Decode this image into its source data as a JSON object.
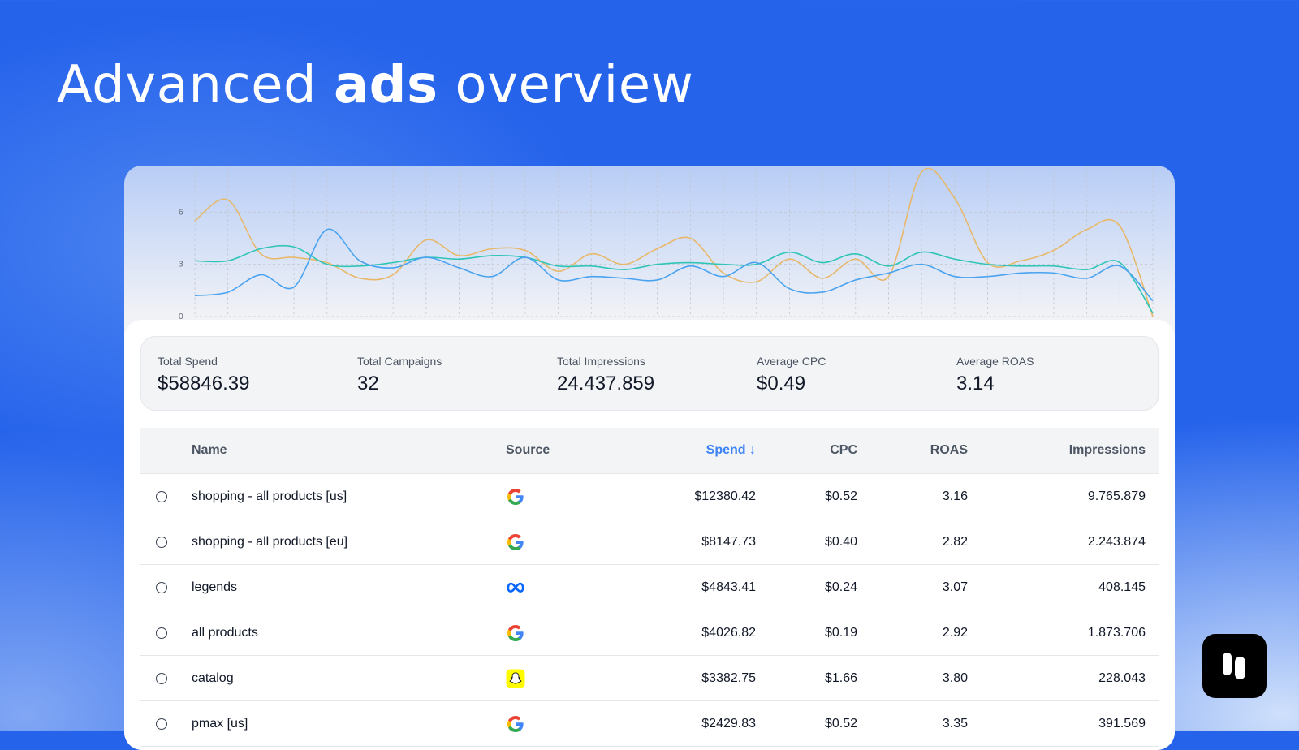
{
  "headline": {
    "pre": "Advanced ",
    "bold": "ads",
    "post": " overview"
  },
  "chart_data": {
    "type": "line",
    "y_ticks": [
      "0",
      "3",
      "6"
    ],
    "ylim": [
      0,
      8.3
    ],
    "grid": true,
    "x_count": 30,
    "series": [
      {
        "color": "#e8b86a",
        "values": [
          5.5,
          6.7,
          3.6,
          3.4,
          3.1,
          2.2,
          2.4,
          4.4,
          3.5,
          3.9,
          3.8,
          2.6,
          3.6,
          3.0,
          3.9,
          4.5,
          2.5,
          2.0,
          3.3,
          2.2,
          3.3,
          2.3,
          8.3,
          6.8,
          3.1,
          3.2,
          3.8,
          5.0,
          5.2,
          0.0
        ]
      },
      {
        "color": "#2ec4b6",
        "values": [
          3.2,
          3.2,
          3.9,
          4.0,
          3.0,
          2.9,
          3.1,
          3.4,
          3.3,
          3.5,
          3.4,
          2.9,
          2.9,
          2.7,
          3.0,
          3.1,
          3.0,
          3.0,
          3.7,
          3.1,
          3.6,
          2.9,
          3.7,
          3.3,
          3.0,
          2.9,
          2.9,
          2.7,
          3.1,
          0.2
        ]
      },
      {
        "color": "#4aa3f0",
        "values": [
          1.2,
          1.4,
          2.4,
          1.7,
          5.0,
          3.2,
          2.8,
          3.4,
          2.8,
          2.3,
          3.4,
          2.1,
          2.3,
          2.2,
          2.1,
          2.9,
          2.3,
          3.1,
          1.6,
          1.4,
          2.1,
          2.5,
          3.0,
          2.3,
          2.3,
          2.5,
          2.5,
          2.2,
          2.9,
          0.9
        ]
      }
    ]
  },
  "summary": [
    {
      "label": "Total Spend",
      "value": "$58846.39"
    },
    {
      "label": "Total Campaigns",
      "value": "32"
    },
    {
      "label": "Total Impressions",
      "value": "24.437.859"
    },
    {
      "label": "Average CPC",
      "value": "$0.49"
    },
    {
      "label": "Average ROAS",
      "value": "3.14"
    }
  ],
  "table": {
    "headers": {
      "name": "Name",
      "source": "Source",
      "spend": "Spend ↓",
      "cpc": "CPC",
      "roas": "ROAS",
      "impressions": "Impressions"
    },
    "rows": [
      {
        "name": "shopping - all products [us]",
        "source": "google-icon",
        "spend": "$12380.42",
        "cpc": "$0.52",
        "roas": "3.16",
        "impressions": "9.765.879"
      },
      {
        "name": "shopping - all products [eu]",
        "source": "google-icon",
        "spend": "$8147.73",
        "cpc": "$0.40",
        "roas": "2.82",
        "impressions": "2.243.874"
      },
      {
        "name": "legends",
        "source": "meta-icon",
        "spend": "$4843.41",
        "cpc": "$0.24",
        "roas": "3.07",
        "impressions": "408.145"
      },
      {
        "name": "all products",
        "source": "google-icon",
        "spend": "$4026.82",
        "cpc": "$0.19",
        "roas": "2.92",
        "impressions": "1.873.706"
      },
      {
        "name": "catalog",
        "source": "snapchat-icon",
        "spend": "$3382.75",
        "cpc": "$1.66",
        "roas": "3.80",
        "impressions": "228.043"
      },
      {
        "name": "pmax [us]",
        "source": "google-icon",
        "spend": "$2429.83",
        "cpc": "$0.52",
        "roas": "3.35",
        "impressions": "391.569"
      }
    ]
  },
  "colors": {
    "background": "#2563eb",
    "accent": "#3b82f6"
  },
  "logo": {
    "icon": "app-logo-icon"
  }
}
